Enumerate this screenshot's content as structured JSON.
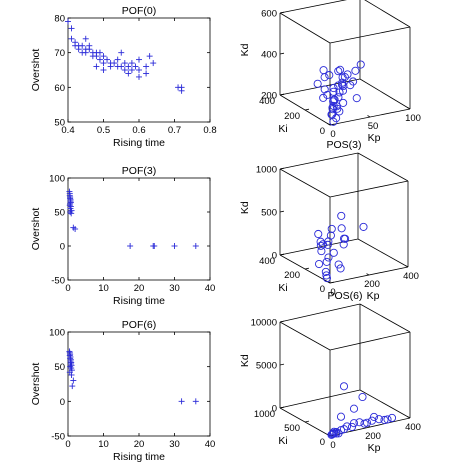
{
  "colors": {
    "marker": "#2b2bd8",
    "axis": "#000000"
  },
  "chart_data": [
    {
      "type": "scatter",
      "title": "POF(0)",
      "xlabel": "Rising time",
      "ylabel": "Overshot",
      "xlim": [
        0.4,
        0.8
      ],
      "ylim": [
        50,
        80
      ],
      "xticks": [
        "0.4",
        "0.5",
        "0.6",
        "0.7",
        "0.8"
      ],
      "xtick_values": [
        0.4,
        0.5,
        0.6,
        0.7,
        0.8
      ],
      "yticks": [
        "50",
        "60",
        "70",
        "80"
      ],
      "ytick_values": [
        50,
        60,
        70,
        80
      ],
      "marker": "+",
      "points": [
        [
          0.4,
          79
        ],
        [
          0.41,
          77
        ],
        [
          0.41,
          74
        ],
        [
          0.42,
          73
        ],
        [
          0.42,
          72
        ],
        [
          0.43,
          72
        ],
        [
          0.43,
          71
        ],
        [
          0.44,
          72
        ],
        [
          0.44,
          70
        ],
        [
          0.45,
          71
        ],
        [
          0.45,
          70
        ],
        [
          0.46,
          72
        ],
        [
          0.46,
          71
        ],
        [
          0.47,
          70
        ],
        [
          0.47,
          69
        ],
        [
          0.48,
          70
        ],
        [
          0.48,
          69
        ],
        [
          0.49,
          70
        ],
        [
          0.49,
          68
        ],
        [
          0.5,
          69
        ],
        [
          0.5,
          67
        ],
        [
          0.51,
          68
        ],
        [
          0.52,
          67
        ],
        [
          0.52,
          66
        ],
        [
          0.53,
          67
        ],
        [
          0.54,
          66
        ],
        [
          0.54,
          68
        ],
        [
          0.55,
          66
        ],
        [
          0.56,
          67
        ],
        [
          0.56,
          65
        ],
        [
          0.57,
          66
        ],
        [
          0.58,
          65
        ],
        [
          0.58,
          67
        ],
        [
          0.59,
          66
        ],
        [
          0.6,
          65
        ],
        [
          0.6,
          68
        ],
        [
          0.62,
          66
        ],
        [
          0.63,
          69
        ],
        [
          0.64,
          67
        ],
        [
          0.48,
          66
        ],
        [
          0.5,
          65
        ],
        [
          0.45,
          74
        ],
        [
          0.55,
          70
        ],
        [
          0.57,
          64
        ],
        [
          0.6,
          63
        ],
        [
          0.62,
          64
        ],
        [
          0.71,
          60
        ],
        [
          0.72,
          59
        ],
        [
          0.72,
          60
        ]
      ]
    },
    {
      "type": "scatter3d",
      "title": "POS(0)",
      "xlabel": "Kp",
      "ylabel": "Ki",
      "zlabel": "Kd",
      "xlim": [
        0,
        100
      ],
      "ylim": [
        0,
        400
      ],
      "zlim": [
        200,
        600
      ],
      "xticks": [
        "0",
        "50",
        "100"
      ],
      "xtick_values": [
        0,
        50,
        100
      ],
      "yticks": [
        "0",
        "200",
        "400"
      ],
      "ytick_values": [
        0,
        200,
        400
      ],
      "zticks": [
        "200",
        "400",
        "600"
      ],
      "ztick_values": [
        200,
        400,
        600
      ],
      "marker": "o",
      "points": [
        [
          5,
          20,
          240
        ],
        [
          8,
          30,
          260
        ],
        [
          10,
          10,
          280
        ],
        [
          12,
          40,
          300
        ],
        [
          6,
          60,
          320
        ],
        [
          15,
          20,
          340
        ],
        [
          18,
          50,
          360
        ],
        [
          20,
          30,
          380
        ],
        [
          4,
          80,
          300
        ],
        [
          9,
          100,
          330
        ],
        [
          14,
          15,
          250
        ],
        [
          7,
          25,
          270
        ],
        [
          11,
          45,
          290
        ],
        [
          16,
          35,
          310
        ],
        [
          13,
          55,
          350
        ],
        [
          19,
          15,
          370
        ],
        [
          22,
          40,
          400
        ],
        [
          25,
          20,
          420
        ],
        [
          28,
          60,
          390
        ],
        [
          30,
          30,
          360
        ],
        [
          35,
          10,
          300
        ],
        [
          10,
          70,
          410
        ],
        [
          6,
          90,
          430
        ],
        [
          12,
          120,
          380
        ],
        [
          8,
          150,
          340
        ],
        [
          14,
          60,
          260
        ],
        [
          17,
          80,
          280
        ],
        [
          20,
          100,
          310
        ],
        [
          24,
          50,
          330
        ],
        [
          26,
          70,
          350
        ],
        [
          32,
          20,
          380
        ],
        [
          38,
          40,
          420
        ],
        [
          40,
          10,
          460
        ],
        [
          15,
          30,
          440
        ],
        [
          10,
          15,
          220
        ],
        [
          5,
          5,
          210
        ],
        [
          9,
          40,
          230
        ],
        [
          13,
          25,
          260
        ],
        [
          18,
          10,
          290
        ],
        [
          22,
          60,
          430
        ]
      ]
    },
    {
      "type": "scatter",
      "title": "POF(3)",
      "xlabel": "Rising time",
      "ylabel": "Overshot",
      "xlim": [
        0,
        40
      ],
      "ylim": [
        -50,
        100
      ],
      "xticks": [
        "0",
        "10",
        "20",
        "30",
        "40"
      ],
      "xtick_values": [
        0,
        10,
        20,
        30,
        40
      ],
      "yticks": [
        "-50",
        "0",
        "50",
        "100"
      ],
      "ytick_values": [
        -50,
        0,
        50,
        100
      ],
      "marker": "+",
      "points": [
        [
          0.4,
          80
        ],
        [
          0.5,
          77
        ],
        [
          0.5,
          74
        ],
        [
          0.6,
          72
        ],
        [
          0.6,
          70
        ],
        [
          0.7,
          68
        ],
        [
          0.7,
          66
        ],
        [
          0.8,
          64
        ],
        [
          0.6,
          62
        ],
        [
          0.5,
          60
        ],
        [
          0.8,
          58
        ],
        [
          0.7,
          55
        ],
        [
          1.0,
          52
        ],
        [
          0.6,
          50
        ],
        [
          0.9,
          48
        ],
        [
          1.5,
          27
        ],
        [
          2.0,
          25
        ],
        [
          17.5,
          0
        ],
        [
          24.0,
          0
        ],
        [
          24.3,
          0
        ],
        [
          30.0,
          0
        ],
        [
          36.0,
          0
        ]
      ]
    },
    {
      "type": "scatter3d",
      "title": "POS(3)",
      "xlabel": "Kp",
      "ylabel": "Ki",
      "zlabel": "Kd",
      "xlim": [
        0,
        400
      ],
      "ylim": [
        0,
        400
      ],
      "zlim": [
        0,
        1000
      ],
      "xticks": [
        "0",
        "200",
        "400"
      ],
      "xtick_values": [
        0,
        200,
        400
      ],
      "yticks": [
        "0",
        "200",
        "400"
      ],
      "ytick_values": [
        0,
        200,
        400
      ],
      "zticks": [
        "0",
        "500",
        "1000"
      ],
      "ztick_values": [
        0,
        500,
        1000
      ],
      "marker": "o",
      "points": [
        [
          20,
          100,
          280
        ],
        [
          30,
          120,
          320
        ],
        [
          40,
          80,
          360
        ],
        [
          60,
          150,
          300
        ],
        [
          80,
          200,
          280
        ],
        [
          100,
          250,
          320
        ],
        [
          120,
          180,
          350
        ],
        [
          150,
          220,
          380
        ],
        [
          180,
          160,
          300
        ],
        [
          200,
          200,
          260
        ],
        [
          30,
          60,
          420
        ],
        [
          50,
          90,
          200
        ],
        [
          70,
          40,
          150
        ],
        [
          60,
          120,
          120
        ],
        [
          40,
          150,
          80
        ],
        [
          30,
          80,
          50
        ],
        [
          20,
          60,
          30
        ],
        [
          10,
          40,
          20
        ],
        [
          80,
          40,
          100
        ],
        [
          250,
          300,
          420
        ],
        [
          300,
          200,
          350
        ],
        [
          220,
          250,
          330
        ],
        [
          160,
          140,
          260
        ],
        [
          90,
          110,
          220
        ]
      ]
    },
    {
      "type": "scatter",
      "title": "POF(6)",
      "xlabel": "Rising time",
      "ylabel": "Overshot",
      "xlim": [
        0,
        40
      ],
      "ylim": [
        -50,
        100
      ],
      "xticks": [
        "0",
        "10",
        "20",
        "30",
        "40"
      ],
      "xtick_values": [
        0,
        10,
        20,
        30,
        40
      ],
      "yticks": [
        "-50",
        "0",
        "50",
        "100"
      ],
      "ytick_values": [
        -50,
        0,
        50,
        100
      ],
      "marker": "+",
      "points": [
        [
          0.4,
          72
        ],
        [
          0.5,
          70
        ],
        [
          0.6,
          68
        ],
        [
          0.5,
          66
        ],
        [
          0.7,
          64
        ],
        [
          0.6,
          62
        ],
        [
          0.8,
          60
        ],
        [
          0.7,
          58
        ],
        [
          0.9,
          56
        ],
        [
          0.8,
          54
        ],
        [
          1.0,
          52
        ],
        [
          0.6,
          50
        ],
        [
          0.9,
          48
        ],
        [
          1.1,
          45
        ],
        [
          0.5,
          42
        ],
        [
          1.0,
          38
        ],
        [
          1.5,
          30
        ],
        [
          1.2,
          22
        ],
        [
          32.0,
          0
        ],
        [
          36.0,
          0
        ]
      ]
    },
    {
      "type": "scatter3d",
      "title": "POS(6)",
      "xlabel": "Kp",
      "ylabel": "Ki",
      "zlabel": "Kd",
      "xlim": [
        0,
        400
      ],
      "ylim": [
        0,
        1000
      ],
      "zlim": [
        0,
        10000
      ],
      "xticks": [
        "0",
        "200",
        "400"
      ],
      "xtick_values": [
        0,
        200,
        400
      ],
      "yticks": [
        "0",
        "500",
        "1000"
      ],
      "ytick_values": [
        0,
        500,
        1000
      ],
      "zticks": [
        "0",
        "5000",
        "10000"
      ],
      "ztick_values": [
        0,
        5000,
        10000
      ],
      "marker": "o",
      "points": [
        [
          20,
          20,
          100
        ],
        [
          30,
          40,
          200
        ],
        [
          40,
          30,
          150
        ],
        [
          60,
          20,
          300
        ],
        [
          80,
          40,
          250
        ],
        [
          100,
          60,
          400
        ],
        [
          120,
          40,
          300
        ],
        [
          140,
          80,
          500
        ],
        [
          160,
          50,
          600
        ],
        [
          180,
          30,
          400
        ],
        [
          200,
          60,
          300
        ],
        [
          220,
          40,
          500
        ],
        [
          240,
          80,
          700
        ],
        [
          260,
          60,
          400
        ],
        [
          280,
          30,
          300
        ],
        [
          300,
          50,
          200
        ],
        [
          320,
          40,
          300
        ],
        [
          10,
          10,
          50
        ],
        [
          15,
          15,
          80
        ],
        [
          25,
          25,
          120
        ],
        [
          35,
          15,
          60
        ],
        [
          45,
          10,
          40
        ],
        [
          120,
          200,
          4500
        ],
        [
          200,
          150,
          3000
        ],
        [
          80,
          100,
          1500
        ],
        [
          150,
          120,
          2000
        ]
      ]
    }
  ]
}
